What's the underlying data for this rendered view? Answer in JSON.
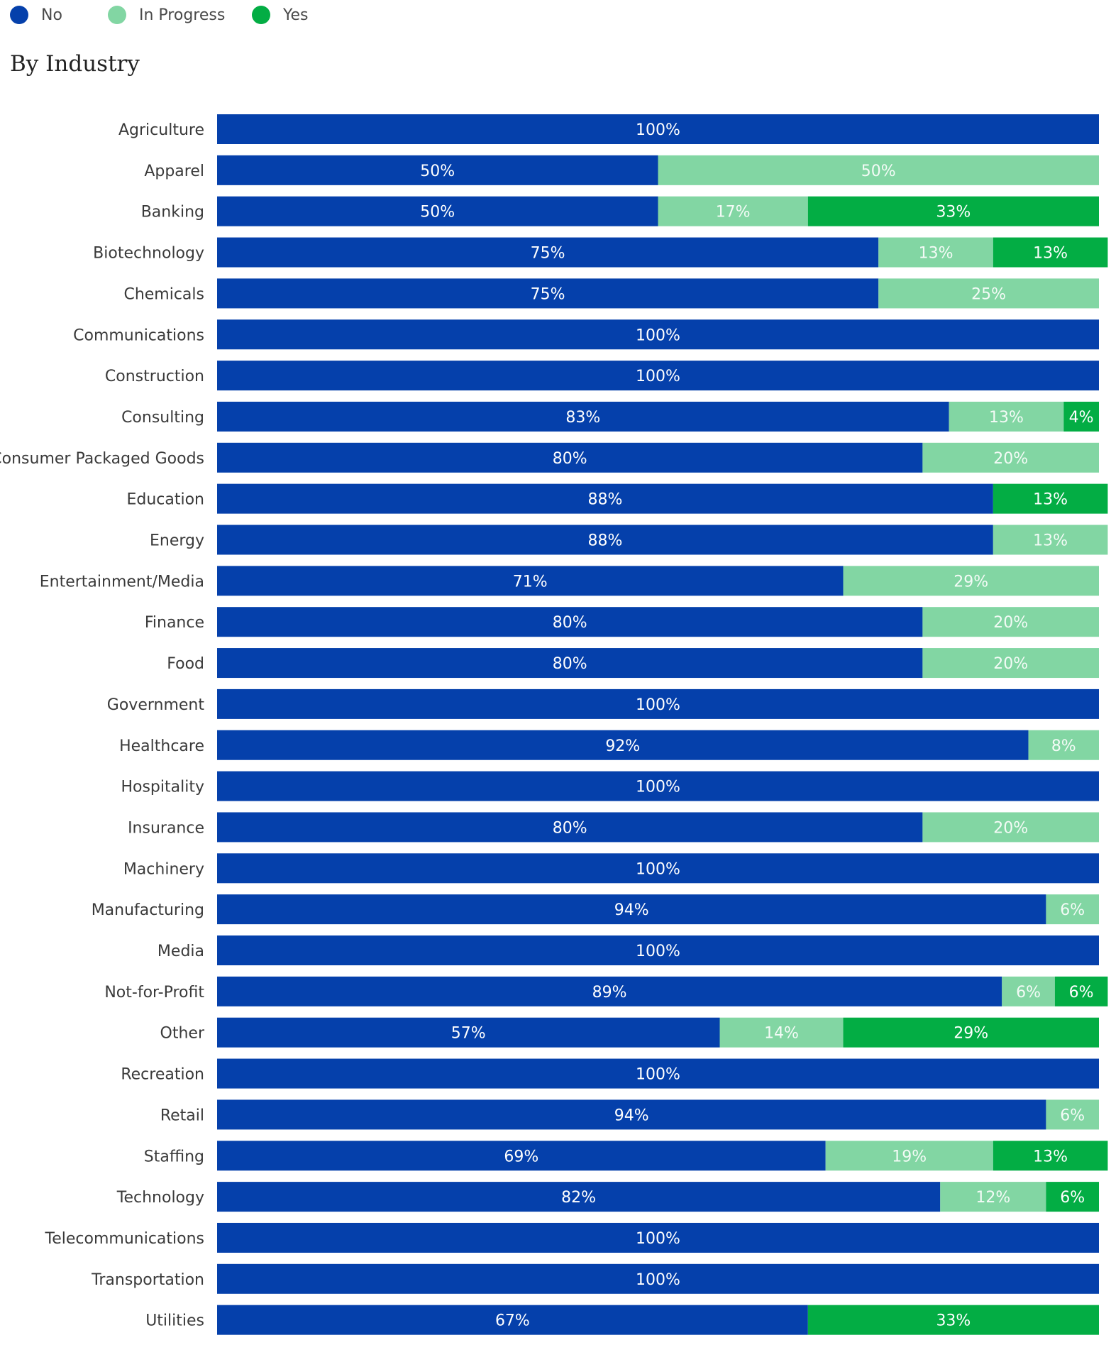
{
  "legend": [
    {
      "label": "No",
      "color": "#0540ab"
    },
    {
      "label": "In Progress",
      "color": "#82d6a3"
    },
    {
      "label": "Yes",
      "color": "#03ad44"
    }
  ],
  "section_title": "By Industry",
  "chart_data": {
    "type": "bar",
    "orientation": "horizontal",
    "stacked": true,
    "normalized": true,
    "categories": [
      "Agriculture",
      "Apparel",
      "Banking",
      "Biotechnology",
      "Chemicals",
      "Communications",
      "Construction",
      "Consulting",
      "Consumer Packaged Goods",
      "Education",
      "Energy",
      "Entertainment/Media",
      "Finance",
      "Food",
      "Government",
      "Healthcare",
      "Hospitality",
      "Insurance",
      "Machinery",
      "Manufacturing",
      "Media",
      "Not-for-Profit",
      "Other",
      "Recreation",
      "Retail",
      "Staffing",
      "Technology",
      "Telecommunications",
      "Transportation",
      "Utilities"
    ],
    "series": [
      {
        "name": "No",
        "color": "#0540ab",
        "values": [
          100,
          50,
          50,
          75,
          75,
          100,
          100,
          83,
          80,
          88,
          88,
          71,
          80,
          80,
          100,
          92,
          100,
          80,
          100,
          94,
          100,
          89,
          57,
          100,
          94,
          69,
          82,
          100,
          100,
          67
        ]
      },
      {
        "name": "In Progress",
        "color": "#82d6a3",
        "values": [
          0,
          50,
          17,
          13,
          25,
          0,
          0,
          13,
          20,
          0,
          13,
          29,
          20,
          20,
          0,
          8,
          0,
          20,
          0,
          6,
          0,
          6,
          14,
          0,
          6,
          19,
          12,
          0,
          0,
          0
        ]
      },
      {
        "name": "Yes",
        "color": "#03ad44",
        "values": [
          0,
          0,
          33,
          13,
          0,
          0,
          0,
          4,
          0,
          13,
          0,
          0,
          0,
          0,
          0,
          0,
          0,
          0,
          0,
          0,
          0,
          6,
          29,
          0,
          0,
          13,
          6,
          0,
          0,
          33
        ]
      }
    ],
    "value_suffix": "%",
    "label_colors": {
      "No": "#ffffff",
      "In Progress": "#f3fbf6",
      "Yes": "#ffffff"
    },
    "category_label_color": "#3a3a3a",
    "xlim": [
      0,
      100
    ],
    "grid": false,
    "legend_position": "top-left"
  }
}
